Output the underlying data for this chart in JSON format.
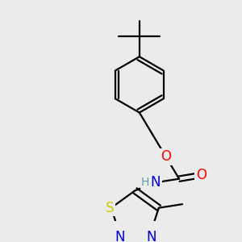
{
  "bg_color": "#ebebeb",
  "bond_color": "#000000",
  "bond_width": 1.6,
  "atom_colors": {
    "O": "#ff0000",
    "N": "#0000cc",
    "S": "#cccc00",
    "H": "#5f9ea0",
    "C": "#000000"
  },
  "font_size": 12
}
